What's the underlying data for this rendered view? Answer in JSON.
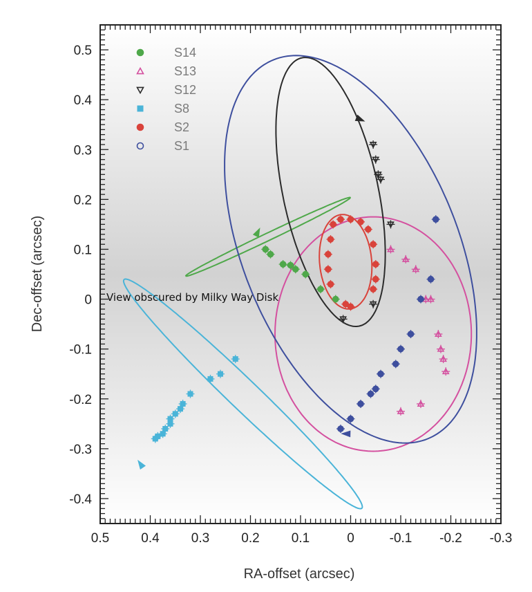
{
  "chart_data": {
    "type": "scatter",
    "title": "",
    "xlabel": "RA-offset (arcsec)",
    "ylabel": "Dec-offset (arcsec)",
    "xlim": [
      0.5,
      -0.3
    ],
    "ylim": [
      -0.45,
      0.55
    ],
    "x_inverted": true,
    "x_ticks": [
      0.5,
      0.4,
      0.3,
      0.2,
      0.1,
      0,
      -0.1,
      -0.2,
      -0.3
    ],
    "x_tick_labels": [
      "0.5",
      "0.4",
      "0.3",
      "0.2",
      "0.1",
      "0",
      "-0.1",
      "-0.2",
      "-0.3"
    ],
    "y_ticks": [
      0.5,
      0.4,
      0.3,
      0.2,
      0.1,
      0,
      -0.1,
      -0.2,
      -0.3,
      -0.4
    ],
    "y_tick_labels": [
      "0.5",
      "0.4",
      "0.3",
      "0.2",
      "0.1",
      "0",
      "-0.1",
      "-0.2",
      "-0.3",
      "-0.4"
    ],
    "grid": false,
    "legend_position": "top-left",
    "annotation": "View obscured by Milky Way Disk",
    "series": [
      {
        "name": "S14",
        "color": "#4fa84a",
        "marker": "filled-circle",
        "orbit": {
          "center": [
            0.165,
            0.125
          ],
          "semi_major": 0.182,
          "semi_minor": 0.0075,
          "angle_deg": -25.6
        },
        "direction_arrow": [
          0.185,
          0.135
        ],
        "points": [
          [
            0.03,
            0.0
          ],
          [
            0.06,
            0.02
          ],
          [
            0.09,
            0.05
          ],
          [
            0.11,
            0.06
          ],
          [
            0.12,
            0.068
          ],
          [
            0.135,
            0.07
          ],
          [
            0.16,
            0.09
          ],
          [
            0.17,
            0.1
          ]
        ]
      },
      {
        "name": "S13",
        "color": "#d4509f",
        "marker": "open-triangle",
        "orbit": {
          "center": [
            -0.045,
            -0.07
          ],
          "semi_major": 0.196,
          "semi_minor": 0.235,
          "angle_deg": 0
        },
        "points": [
          [
            -0.08,
            0.1
          ],
          [
            -0.11,
            0.08
          ],
          [
            -0.13,
            0.06
          ],
          [
            -0.15,
            0.0
          ],
          [
            -0.16,
            0.0
          ],
          [
            -0.175,
            -0.07
          ],
          [
            -0.18,
            -0.1
          ],
          [
            -0.185,
            -0.12
          ],
          [
            -0.19,
            -0.145
          ],
          [
            -0.1,
            -0.225
          ],
          [
            -0.14,
            -0.21
          ]
        ]
      },
      {
        "name": "S12",
        "color": "#2b2b2b",
        "marker": "open-triangle-down",
        "orbit": {
          "center": [
            0.04,
            0.215
          ],
          "semi_major": 0.275,
          "semi_minor": 0.095,
          "angle_deg": 78
        },
        "direction_arrow": [
          -0.02,
          0.36
        ],
        "points": [
          [
            -0.045,
            0.31
          ],
          [
            -0.05,
            0.28
          ],
          [
            -0.055,
            0.25
          ],
          [
            -0.06,
            0.24
          ],
          [
            -0.08,
            0.15
          ],
          [
            -0.045,
            -0.01
          ],
          [
            0.015,
            -0.04
          ]
        ]
      },
      {
        "name": "S8",
        "color": "#4ab4d8",
        "marker": "filled-square",
        "orbit": {
          "center": [
            0.215,
            -0.19
          ],
          "semi_major": 0.33,
          "semi_minor": 0.03,
          "angle_deg": 44
        },
        "direction_arrow": [
          0.42,
          -0.33
        ],
        "points": [
          [
            0.23,
            -0.12
          ],
          [
            0.26,
            -0.15
          ],
          [
            0.28,
            -0.16
          ],
          [
            0.32,
            -0.19
          ],
          [
            0.335,
            -0.21
          ],
          [
            0.35,
            -0.23
          ],
          [
            0.36,
            -0.25
          ],
          [
            0.37,
            -0.26
          ],
          [
            0.375,
            -0.27
          ],
          [
            0.385,
            -0.275
          ],
          [
            0.39,
            -0.28
          ],
          [
            0.36,
            -0.24
          ],
          [
            0.34,
            -0.22
          ]
        ]
      },
      {
        "name": "S2",
        "color": "#d9433b",
        "marker": "filled-circle",
        "orbit": {
          "center": [
            0.01,
            0.075
          ],
          "semi_major": 0.095,
          "semi_minor": 0.052,
          "angle_deg": 85
        },
        "points": [
          [
            0.035,
            0.15
          ],
          [
            0.02,
            0.16
          ],
          [
            0.0,
            0.16
          ],
          [
            -0.02,
            0.155
          ],
          [
            -0.035,
            0.14
          ],
          [
            0.04,
            0.12
          ],
          [
            0.045,
            0.09
          ],
          [
            0.045,
            0.06
          ],
          [
            0.04,
            0.03
          ],
          [
            -0.045,
            0.11
          ],
          [
            -0.05,
            0.07
          ],
          [
            -0.05,
            0.04
          ],
          [
            -0.045,
            0.02
          ],
          [
            0.01,
            -0.01
          ],
          [
            0.0,
            -0.015
          ]
        ]
      },
      {
        "name": "S1",
        "color": "#3e4f9e",
        "marker": "open-circle",
        "orbit": {
          "center": [
            0.0,
            0.1
          ],
          "semi_major": 0.41,
          "semi_minor": 0.215,
          "angle_deg": 68
        },
        "direction_arrow": [
          0.01,
          -0.27
        ],
        "points": [
          [
            -0.17,
            0.16
          ],
          [
            -0.16,
            0.04
          ],
          [
            -0.14,
            0.0
          ],
          [
            -0.12,
            -0.07
          ],
          [
            -0.1,
            -0.1
          ],
          [
            -0.09,
            -0.13
          ],
          [
            -0.06,
            -0.15
          ],
          [
            -0.05,
            -0.18
          ],
          [
            -0.04,
            -0.19
          ],
          [
            -0.02,
            -0.21
          ],
          [
            0.0,
            -0.24
          ],
          [
            0.02,
            -0.26
          ]
        ]
      }
    ]
  }
}
